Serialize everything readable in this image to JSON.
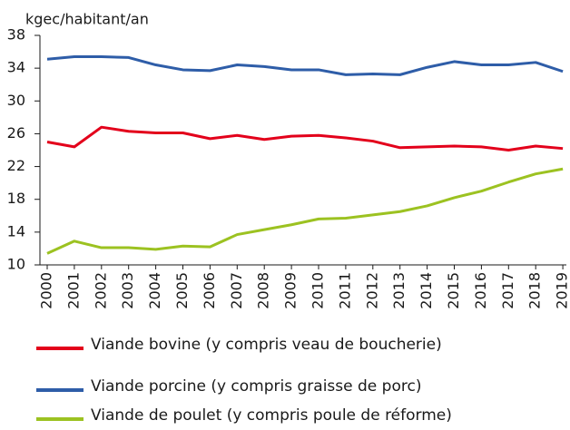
{
  "chart_data": {
    "type": "line",
    "y_axis_label": "kgec/habitant/an",
    "categories": [
      "2000",
      "2001",
      "2002",
      "2003",
      "2004",
      "2005",
      "2006",
      "2007",
      "2008",
      "2009",
      "2010",
      "2011",
      "2012",
      "2013",
      "2014",
      "2015",
      "2016",
      "2017",
      "2018",
      "2019"
    ],
    "series": [
      {
        "name": "Viande bovine (y compris veau de boucherie)",
        "color": "#e3001b",
        "values": [
          25.0,
          24.4,
          26.8,
          26.3,
          26.1,
          26.1,
          25.4,
          25.8,
          25.3,
          25.7,
          25.8,
          25.5,
          25.1,
          24.3,
          24.4,
          24.5,
          24.4,
          24.0,
          24.5,
          24.2
        ]
      },
      {
        "name": "Viande porcine (y compris graisse de porc)",
        "color": "#2e5da8",
        "values": [
          35.1,
          35.4,
          35.4,
          35.3,
          34.4,
          33.8,
          33.7,
          34.4,
          34.2,
          33.8,
          33.8,
          33.2,
          33.3,
          33.2,
          34.1,
          34.8,
          34.4,
          34.4,
          34.7,
          33.6
        ]
      },
      {
        "name": "Viande de poulet (y compris poule de réforme)",
        "color": "#9cc221",
        "values": [
          11.4,
          12.9,
          12.1,
          12.1,
          11.9,
          12.3,
          12.2,
          13.7,
          14.3,
          14.9,
          15.6,
          15.7,
          16.1,
          16.5,
          17.2,
          18.2,
          19.0,
          20.1,
          21.1,
          21.7
        ]
      }
    ],
    "ylim": [
      10,
      38
    ],
    "yticks": [
      10,
      14,
      18,
      22,
      26,
      30,
      34,
      38
    ],
    "grid": false
  }
}
